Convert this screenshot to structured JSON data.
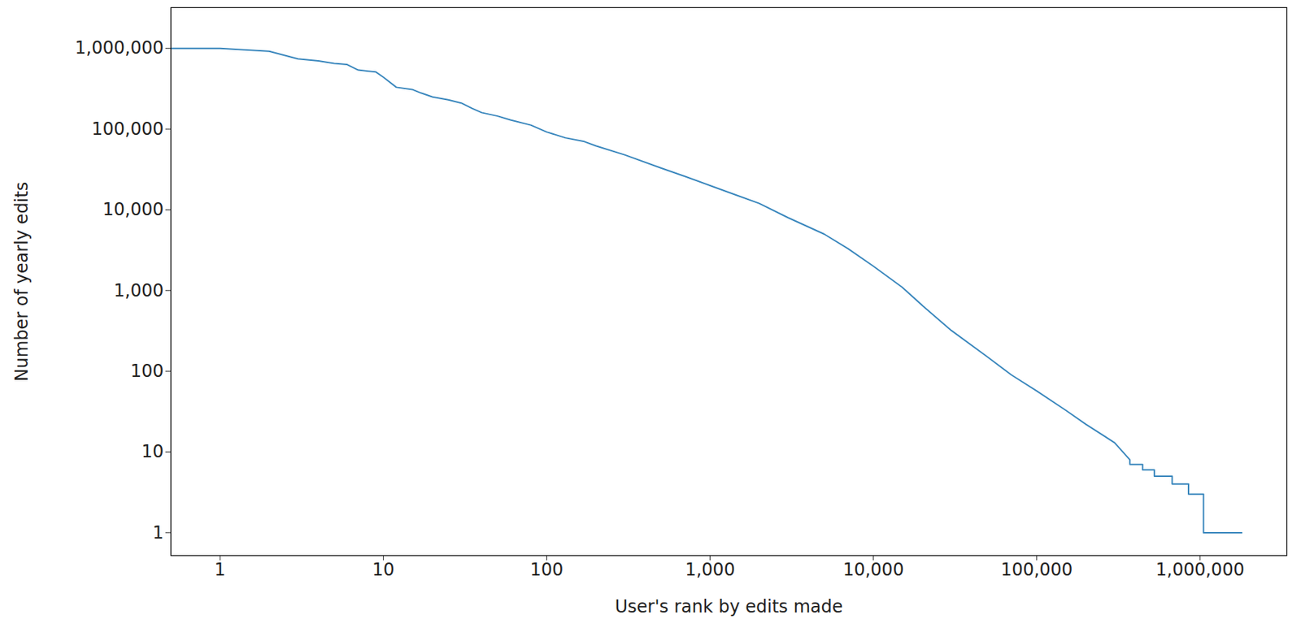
{
  "chart_data": {
    "type": "line",
    "x_label": "User's rank by edits made",
    "y_label": "Number of yearly edits",
    "log": true,
    "grid": false,
    "color": "#3a87bd",
    "x": [
      0.5,
      1,
      2,
      3,
      4,
      5,
      6,
      7,
      9,
      10,
      12,
      15,
      17,
      20,
      25,
      30,
      35,
      40,
      50,
      60,
      80,
      100,
      130,
      170,
      200,
      300,
      500,
      700,
      1000,
      2000,
      3000,
      5000,
      7000,
      10000,
      15000,
      20000,
      30000,
      50000,
      70000,
      100000,
      150000,
      200000,
      300000,
      372000,
      372000,
      445000,
      445000,
      525000,
      525000,
      675000,
      675000,
      850000,
      850000,
      1050000,
      1050000,
      1800000
    ],
    "values": [
      1000000,
      1000000,
      920000,
      740000,
      700000,
      650000,
      630000,
      540000,
      510000,
      440000,
      330000,
      310000,
      280000,
      250000,
      230000,
      210000,
      180000,
      160000,
      145000,
      130000,
      112000,
      92000,
      78000,
      70000,
      62000,
      48000,
      33000,
      26000,
      20000,
      12000,
      8000,
      5000,
      3300,
      2000,
      1100,
      650,
      320,
      150,
      90,
      57,
      33,
      22,
      13,
      8,
      7,
      7,
      6,
      6,
      5,
      5,
      4,
      4,
      3,
      3,
      1,
      1
    ],
    "xlim": [
      0.5,
      3400000
    ],
    "ylim": [
      0.52,
      3200000
    ],
    "xticks": [
      1,
      10,
      100,
      {
        "value": 1000,
        "label": "1,000"
      },
      {
        "value": 10000,
        "label": "10,000"
      },
      {
        "value": 100000,
        "label": "100,000"
      },
      {
        "value": 1000000,
        "label": "1,000,000"
      }
    ],
    "yticks": [
      1,
      10,
      100,
      {
        "value": 1000,
        "label": "1,000"
      },
      {
        "value": 10000,
        "label": "10,000"
      },
      {
        "value": 100000,
        "label": "100,000"
      },
      {
        "value": 1000000,
        "label": "1,000,000"
      }
    ]
  }
}
